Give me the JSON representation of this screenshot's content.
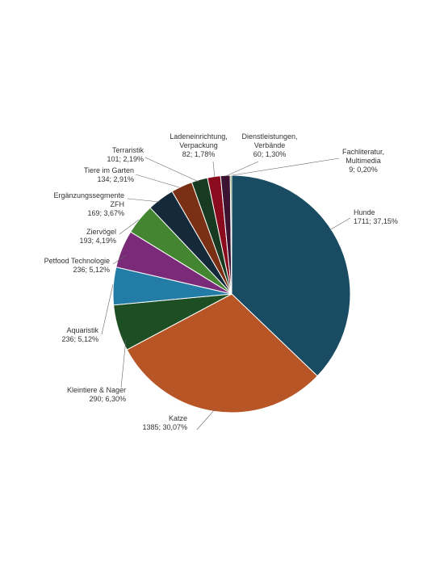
{
  "chart_data": {
    "type": "pie",
    "title": "",
    "start_angle_deg": 0,
    "direction": "clockwise",
    "slices": [
      {
        "label": "Hunde",
        "value": 1711,
        "percent": "37,15%",
        "text": "1711; 37,15%",
        "color": "#194b63"
      },
      {
        "label": "Katze",
        "value": 1385,
        "percent": "30,07%",
        "text": "1385; 30,07%",
        "color": "#b85526"
      },
      {
        "label": "Kleintiere & Nager",
        "value": 290,
        "percent": "6,30%",
        "text": "290; 6,30%",
        "color": "#1e4f24"
      },
      {
        "label": "Aquaristik",
        "value": 236,
        "percent": "5,12%",
        "text": "236; 5,12%",
        "color": "#237ca6"
      },
      {
        "label": "Petfood Technologie",
        "value": 236,
        "percent": "5,12%",
        "text": "236; 5,12%",
        "color": "#7a2a79"
      },
      {
        "label": "Ziervögel",
        "value": 193,
        "percent": "4,19%",
        "text": "193; 4,19%",
        "color": "#438530"
      },
      {
        "label": "Ergänzungssegmente ZFH",
        "value": 169,
        "percent": "3,67%",
        "text": "169; 3,67%",
        "color": "#142a3a",
        "label_lines": [
          "Ergänzungssegmente",
          "ZFH"
        ]
      },
      {
        "label": "Tiere im Garten",
        "value": 134,
        "percent": "2,91%",
        "text": "134; 2,91%",
        "color": "#7a3014"
      },
      {
        "label": "Terraristik",
        "value": 101,
        "percent": "2,19%",
        "text": "101; 2,19%",
        "color": "#183a20"
      },
      {
        "label": "Ladeneinrichtung, Verpackung",
        "value": 82,
        "percent": "1,78%",
        "text": "82; 1,78%",
        "color": "#8a0a1e",
        "label_lines": [
          "Ladeneinrichtung,",
          "Verpackung"
        ]
      },
      {
        "label": "Dienstleistungen, Verbände",
        "value": 60,
        "percent": "1,30%",
        "text": "60; 1,30%",
        "color": "#3b1230",
        "label_lines": [
          "Dienstleistungen,",
          "Verbände"
        ]
      },
      {
        "label": "Fachliteratur, Multimedia",
        "value": 9,
        "percent": "0,20%",
        "text": "9; 0,20%",
        "color": "#5c8a30",
        "label_lines": [
          "Fachliteratur,",
          "Multimedia"
        ]
      }
    ]
  }
}
